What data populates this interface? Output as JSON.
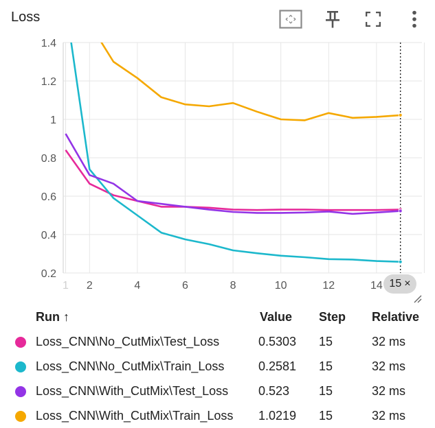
{
  "header": {
    "title": "Loss",
    "icons": [
      "fit-domain-icon",
      "pin-icon",
      "fullscreen-icon",
      "more-vert-icon"
    ]
  },
  "hover": {
    "step_label": "15",
    "close_glyph": "×"
  },
  "legend": {
    "columns": {
      "run": "Run ↑",
      "value": "Value",
      "step": "Step",
      "relative": "Relative"
    },
    "rows": [
      {
        "name": "Loss_CNN\\No_CutMix\\Test_Loss",
        "value": "0.5303",
        "step": "15",
        "relative": "32 ms",
        "color": "#e62a9a"
      },
      {
        "name": "Loss_CNN\\No_CutMix\\Train_Loss",
        "value": "0.2581",
        "step": "15",
        "relative": "32 ms",
        "color": "#1cb8cc"
      },
      {
        "name": "Loss_CNN\\With_CutMix\\Test_Loss",
        "value": "0.523",
        "step": "15",
        "relative": "32 ms",
        "color": "#9334e6"
      },
      {
        "name": "Loss_CNN\\With_CutMix\\Train_Loss",
        "value": "1.0219",
        "step": "15",
        "relative": "32 ms",
        "color": "#f5a800"
      }
    ]
  },
  "chart_data": {
    "type": "line",
    "title": "Loss",
    "xlabel": "",
    "ylabel": "",
    "xlim": [
      0.9,
      15.9
    ],
    "ylim": [
      0.2,
      1.4
    ],
    "x_ticks": [
      1,
      2,
      4,
      6,
      8,
      10,
      12,
      14
    ],
    "y_ticks": [
      0.2,
      0.4,
      0.6,
      0.8,
      1,
      1.2,
      1.4
    ],
    "y_tick_labels": [
      "0.2",
      "0.4",
      "0.6",
      "0.8",
      "1",
      "1.2",
      "1.4"
    ],
    "grid": true,
    "legend_placement": "below",
    "hover_step": 15,
    "series": [
      {
        "name": "Loss_CNN\\No_CutMix\\Test_Loss",
        "color": "#e62a9a",
        "x": [
          1,
          2,
          3,
          4,
          5,
          6,
          7,
          8,
          9,
          10,
          11,
          12,
          13,
          14,
          15
        ],
        "y": [
          0.84,
          0.665,
          0.605,
          0.575,
          0.545,
          0.545,
          0.54,
          0.53,
          0.528,
          0.53,
          0.53,
          0.528,
          0.528,
          0.528,
          0.5303
        ]
      },
      {
        "name": "Loss_CNN\\No_CutMix\\Train_Loss",
        "color": "#1cb8cc",
        "x": [
          1,
          2,
          3,
          4,
          5,
          6,
          7,
          8,
          9,
          10,
          11,
          12,
          13,
          14,
          15
        ],
        "y": [
          1.6,
          0.74,
          0.59,
          0.5,
          0.41,
          0.375,
          0.35,
          0.318,
          0.303,
          0.29,
          0.282,
          0.272,
          0.27,
          0.262,
          0.2581
        ]
      },
      {
        "name": "Loss_CNN\\With_CutMix\\Test_Loss",
        "color": "#9334e6",
        "x": [
          1,
          2,
          3,
          4,
          5,
          6,
          7,
          8,
          9,
          10,
          11,
          12,
          13,
          14,
          15
        ],
        "y": [
          0.925,
          0.71,
          0.665,
          0.575,
          0.56,
          0.545,
          0.53,
          0.518,
          0.513,
          0.513,
          0.515,
          0.52,
          0.508,
          0.515,
          0.523
        ]
      },
      {
        "name": "Loss_CNN\\With_CutMix\\Train_Loss",
        "color": "#f5a800",
        "x": [
          2,
          3,
          4,
          5,
          6,
          7,
          8,
          9,
          10,
          11,
          12,
          13,
          14,
          15
        ],
        "y": [
          1.5,
          1.3,
          1.215,
          1.115,
          1.078,
          1.068,
          1.085,
          1.04,
          1.0,
          0.995,
          1.033,
          1.008,
          1.013,
          1.0219
        ]
      }
    ]
  }
}
